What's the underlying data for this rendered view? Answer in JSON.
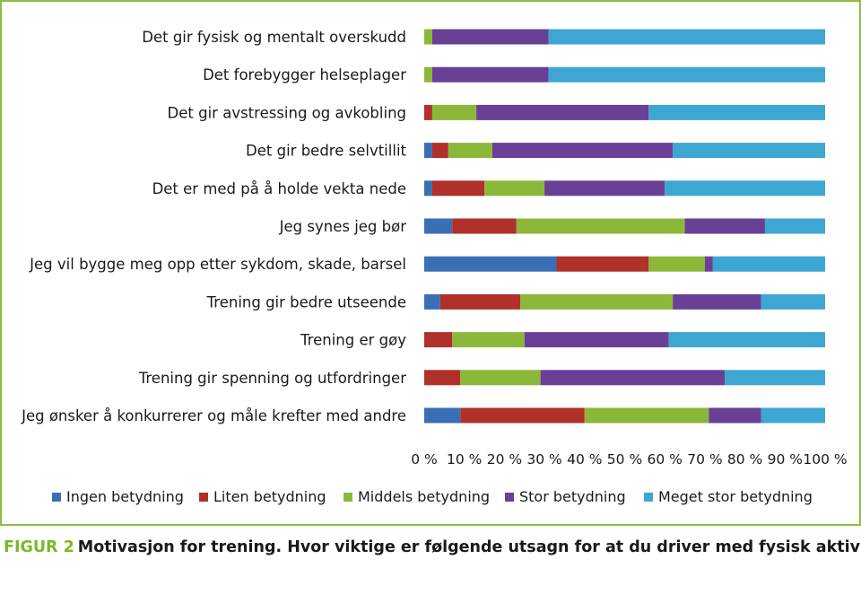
{
  "caption": {
    "label": "FIGUR 2",
    "text": "Motivasjon for trening. Hvor viktige er følgende utsagn for at du driver med fysisk aktivitet?"
  },
  "chart_data": {
    "type": "bar",
    "orientation": "horizontal",
    "stacked": true,
    "percent_stacked": true,
    "title": "",
    "xlabel": "",
    "ylabel": "",
    "xlim": [
      0,
      100
    ],
    "grid": false,
    "legend_position": "bottom",
    "x_ticks": [
      "0 %",
      "10 %",
      "20 %",
      "30 %",
      "40 %",
      "50 %",
      "60 %",
      "70 %",
      "80 %",
      "90 %",
      "100 %"
    ],
    "categories": [
      "Det gir fysisk og mentalt overskudd",
      "Det forebygger helseplager",
      "Det gir avstressing og avkobling",
      "Det gir bedre selvtillit",
      "Det er med på å holde vekta nede",
      "Jeg synes jeg bør",
      "Jeg vil bygge meg opp etter sykdom, skade, barsel",
      "Trening gir bedre utseende",
      "Trening er gøy",
      "Trening gir spenning og utfordringer",
      "Jeg ønsker å konkurrerer og måle krefter med andre"
    ],
    "series": [
      {
        "name": "Ingen betydning",
        "color": "#3a6fb5",
        "values": [
          0,
          0,
          0,
          2,
          2,
          7,
          33,
          4,
          0,
          0,
          9
        ]
      },
      {
        "name": "Liten betydning",
        "color": "#b0302a",
        "values": [
          0,
          0,
          2,
          4,
          13,
          16,
          23,
          20,
          7,
          9,
          31
        ]
      },
      {
        "name": "Middels betydning",
        "color": "#8cb83a",
        "values": [
          2,
          2,
          11,
          11,
          15,
          42,
          14,
          38,
          18,
          20,
          31
        ]
      },
      {
        "name": "Stor betydning",
        "color": "#6a3f96",
        "values": [
          29,
          29,
          43,
          45,
          30,
          20,
          2,
          22,
          36,
          46,
          13
        ]
      },
      {
        "name": "Meget stor betydning",
        "color": "#3ea6d2",
        "values": [
          69,
          69,
          44,
          38,
          40,
          15,
          28,
          16,
          39,
          25,
          16
        ]
      }
    ]
  }
}
